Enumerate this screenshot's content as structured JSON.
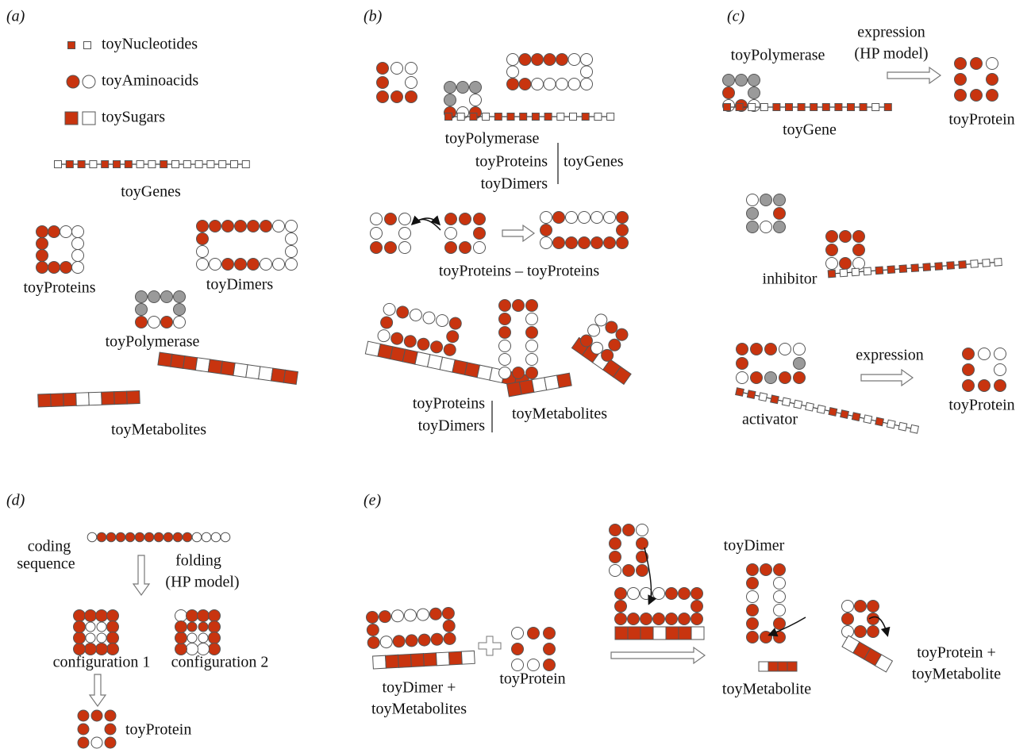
{
  "panels": [
    {
      "label": "(a)",
      "texts": [
        "toyNucleotides",
        "toyAminoacids",
        "toySugars",
        "toyGenes",
        "toyProteins",
        "toyDimers",
        "toyPolymerase",
        "toyMetabolites"
      ]
    },
    {
      "label": "(b)",
      "texts": [
        "toyPolymerase",
        "toyProteins",
        "toyDimers",
        "toyGenes",
        "toyProteins – toyProteins",
        "toyProteins",
        "toyDimers",
        "toyMetabolites"
      ]
    },
    {
      "label": "(c)",
      "texts": [
        "toyPolymerase",
        "expression",
        "(HP model)",
        "toyProtein",
        "toyGene",
        "inhibitor",
        "expression",
        "toyProtein",
        "activator"
      ]
    },
    {
      "label": "(d)",
      "texts": [
        "coding",
        "sequence",
        "folding",
        "(HP model)",
        "configuration 1",
        "configuration 2",
        "toyProtein"
      ]
    },
    {
      "label": "(e)",
      "texts": [
        "toyDimer +",
        "toyMetabolites",
        "toyProtein",
        "toyDimer",
        "toyMetabolite",
        "toyProtein +",
        "toyMetabolite"
      ]
    }
  ]
}
